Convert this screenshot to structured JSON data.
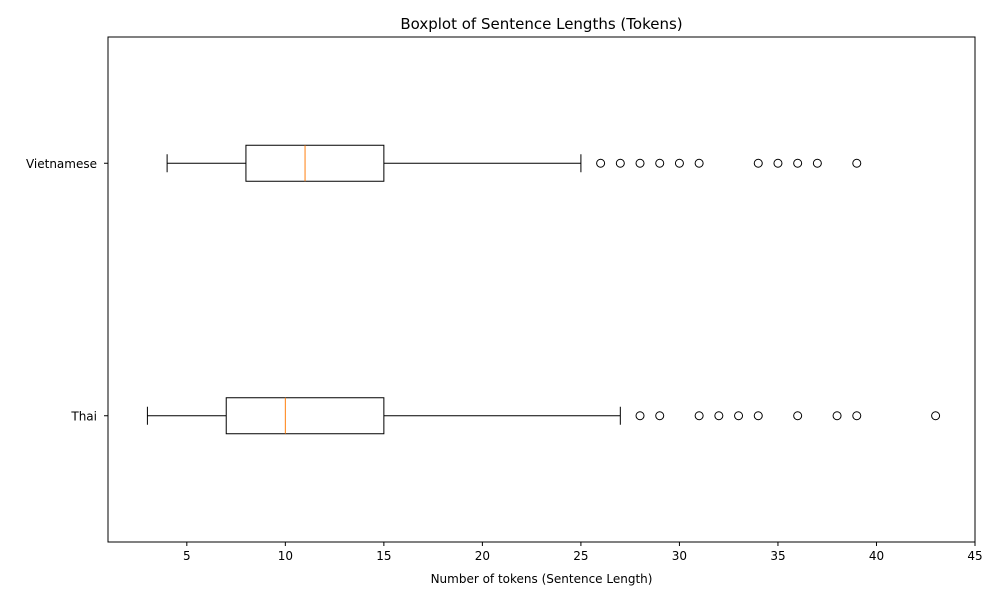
{
  "chart_data": {
    "type": "boxplot",
    "orientation": "horizontal",
    "title": "Boxplot of Sentence Lengths (Tokens)",
    "xlabel": "Number of tokens (Sentence Length)",
    "ylabel": "",
    "xlim": [
      1,
      45
    ],
    "xticks": [
      5,
      10,
      15,
      20,
      25,
      30,
      35,
      40,
      45
    ],
    "grid": false,
    "box_color": "#000000",
    "median_color": "#ff7f0e",
    "categories": [
      "Thai",
      "Vietnamese"
    ],
    "series": [
      {
        "name": "Thai",
        "whisker_low": 3,
        "q1": 7,
        "median": 10,
        "q3": 15,
        "whisker_high": 27,
        "outliers": [
          28,
          29,
          31,
          32,
          33,
          34,
          36,
          38,
          39,
          43
        ]
      },
      {
        "name": "Vietnamese",
        "whisker_low": 4,
        "q1": 8,
        "median": 11,
        "q3": 15,
        "whisker_high": 25,
        "outliers": [
          26,
          27,
          28,
          29,
          30,
          31,
          34,
          35,
          36,
          37,
          39
        ]
      }
    ]
  }
}
